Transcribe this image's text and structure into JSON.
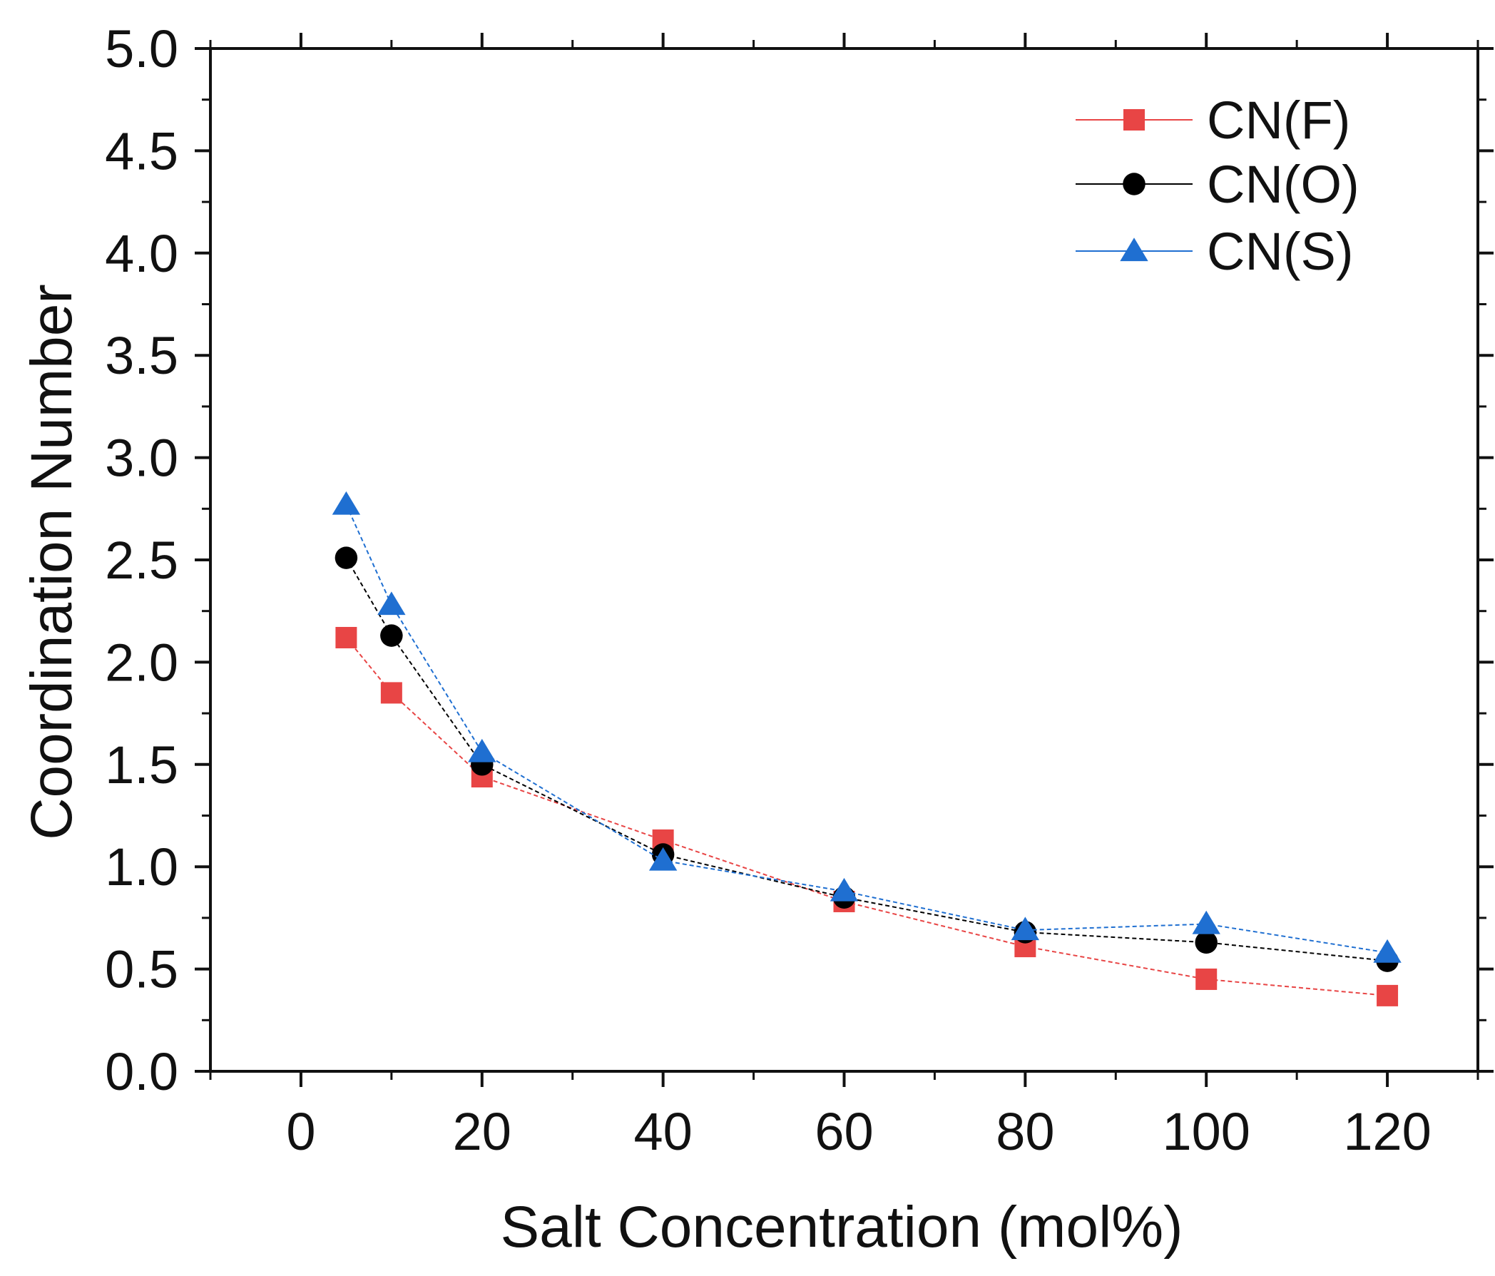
{
  "chart_data": {
    "type": "line",
    "title": "",
    "xlabel": "Salt Concentration (mol%)",
    "ylabel": "Coordination Number",
    "xlim": [
      -10,
      130
    ],
    "ylim": [
      0.0,
      5.0
    ],
    "xticks": [
      0,
      20,
      40,
      60,
      80,
      100,
      120
    ],
    "xtick_labels": [
      "0",
      "20",
      "40",
      "60",
      "80",
      "100",
      "120"
    ],
    "xminor_ticks": [
      -10,
      10,
      30,
      50,
      70,
      90,
      110,
      130
    ],
    "yticks": [
      0.0,
      0.5,
      1.0,
      1.5,
      2.0,
      2.5,
      3.0,
      3.5,
      4.0,
      4.5,
      5.0
    ],
    "ytick_labels": [
      "0.0",
      "0.5",
      "1.0",
      "1.5",
      "2.0",
      "2.5",
      "3.0",
      "3.5",
      "4.0",
      "4.5",
      "5.0"
    ],
    "yminor_ticks": [
      0.25,
      0.75,
      1.25,
      1.75,
      2.25,
      2.75,
      3.25,
      3.75,
      4.25,
      4.75
    ],
    "grid": false,
    "legend_position": "top-right",
    "x": [
      5,
      10,
      20,
      40,
      60,
      80,
      100,
      120
    ],
    "series": [
      {
        "name": "CN(F)",
        "marker": "square",
        "color": "#e84545",
        "values": [
          2.12,
          1.85,
          1.44,
          1.13,
          0.83,
          0.61,
          0.45,
          0.37
        ]
      },
      {
        "name": "CN(O)",
        "marker": "circle",
        "color": "#000000",
        "values": [
          2.51,
          2.13,
          1.5,
          1.06,
          0.85,
          0.68,
          0.63,
          0.54
        ]
      },
      {
        "name": "CN(S)",
        "marker": "triangle",
        "color": "#1f6fd1",
        "values": [
          2.77,
          2.28,
          1.56,
          1.03,
          0.88,
          0.69,
          0.72,
          0.58
        ]
      }
    ]
  }
}
